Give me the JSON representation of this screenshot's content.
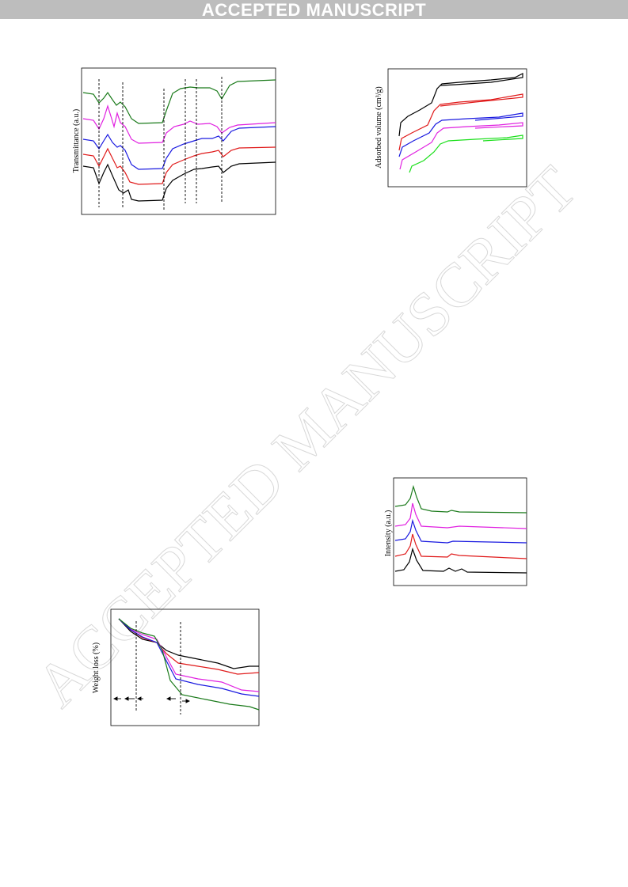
{
  "header": {
    "banner": "ACCEPTED MANUSCRIPT"
  },
  "watermark": "ACCEPTED MANUSCRIPT",
  "figures": [
    {
      "y_label": "Transmittance (a.u.)"
    },
    {
      "y_label": "Adsorbed volume (cm³/g)"
    },
    {
      "y_label": "Intensity (a.u.)"
    },
    {
      "y_label": "Weight loss (%)"
    }
  ]
}
